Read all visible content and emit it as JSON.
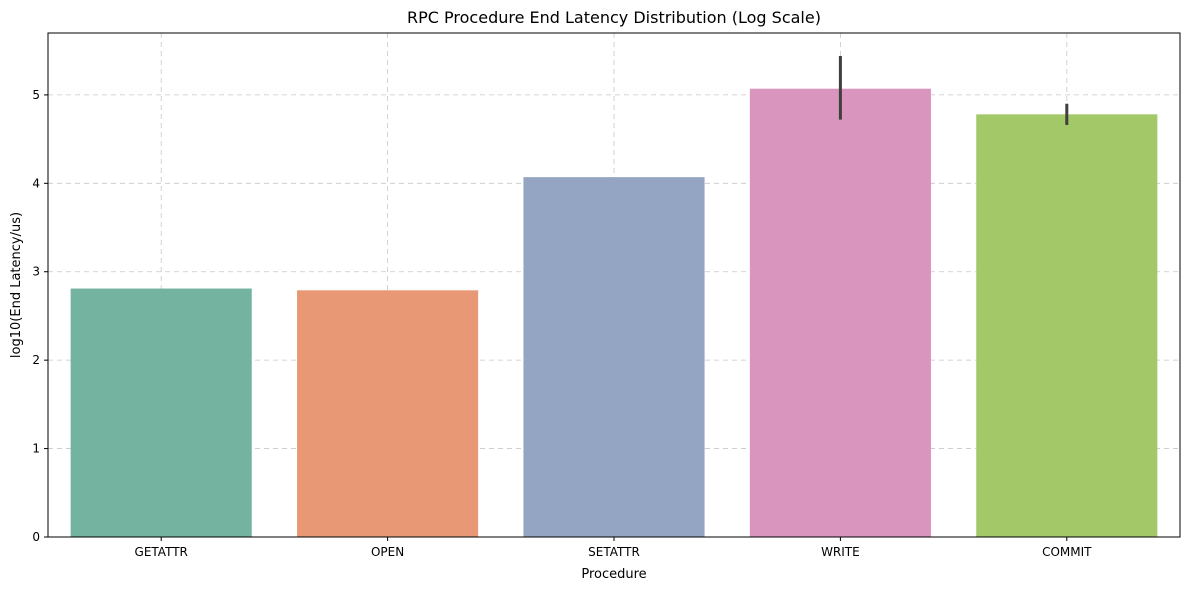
{
  "chart_data": {
    "type": "bar",
    "title": "RPC Procedure End Latency Distribution (Log Scale)",
    "xlabel": "Procedure",
    "ylabel": "log10(End Latency/us)",
    "categories": [
      "GETATTR",
      "OPEN",
      "SETATTR",
      "WRITE",
      "COMMIT"
    ],
    "values": [
      2.81,
      2.79,
      4.07,
      5.07,
      4.78
    ],
    "error_bars": [
      null,
      null,
      null,
      [
        4.72,
        5.44
      ],
      [
        4.66,
        4.9
      ]
    ],
    "colors": [
      "#73b3a0",
      "#e89875",
      "#94a5c3",
      "#da95be",
      "#a2c867"
    ],
    "error_bar_color": "#3f3f3f",
    "ylim": [
      0,
      5.7
    ],
    "yticks": [
      0,
      1,
      2,
      3,
      4,
      5
    ],
    "grid": true
  }
}
